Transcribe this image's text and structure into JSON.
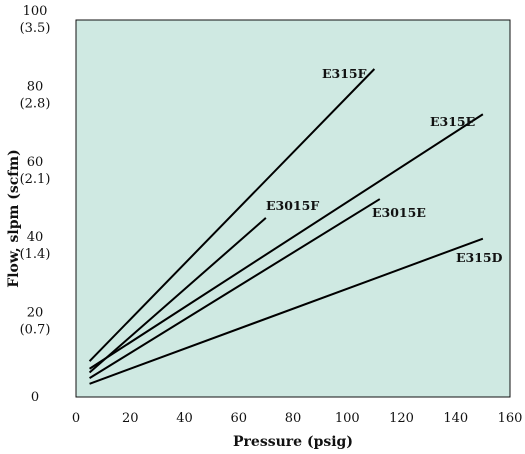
{
  "chart_data": {
    "type": "line",
    "title": "",
    "xlabel": "Pressure (psig)",
    "ylabel": "Flow, slpm (scfm)",
    "xlim": [
      0,
      160
    ],
    "ylim": [
      0,
      100
    ],
    "x_ticks": [
      "0",
      "20",
      "40",
      "60",
      "80",
      "100",
      "120",
      "140",
      "160"
    ],
    "y_ticks": [
      {
        "value": 0,
        "label": "0",
        "sublabel": ""
      },
      {
        "value": 20,
        "label": "20",
        "sublabel": "(0.7)"
      },
      {
        "value": 40,
        "label": "40",
        "sublabel": "(1.4)"
      },
      {
        "value": 60,
        "label": "60",
        "sublabel": "(2.1)"
      },
      {
        "value": 80,
        "label": "80",
        "sublabel": "(2.8)"
      },
      {
        "value": 100,
        "label": "100",
        "sublabel": "(3.5)"
      }
    ],
    "grid": false,
    "background_color": "#cfe9e2",
    "line_color": "#000000",
    "series": [
      {
        "name": "E315F",
        "points": [
          [
            5,
            9.5
          ],
          [
            110,
            87
          ]
        ]
      },
      {
        "name": "E315E",
        "points": [
          [
            5,
            7.5
          ],
          [
            150,
            75
          ]
        ]
      },
      {
        "name": "E3015F",
        "points": [
          [
            5,
            6.5
          ],
          [
            70,
            47.5
          ]
        ]
      },
      {
        "name": "E3015E",
        "points": [
          [
            5,
            5
          ],
          [
            112,
            52.5
          ]
        ]
      },
      {
        "name": "E315D",
        "points": [
          [
            5,
            3.5
          ],
          [
            150,
            42
          ]
        ]
      }
    ]
  }
}
